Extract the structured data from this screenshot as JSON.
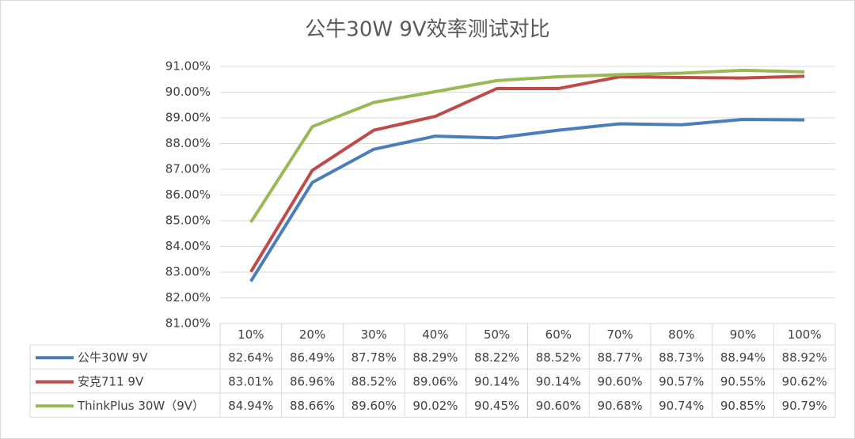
{
  "chart_data": {
    "type": "line",
    "title": "公牛30W 9V效率测试对比",
    "categories": [
      "10%",
      "20%",
      "30%",
      "40%",
      "50%",
      "60%",
      "70%",
      "80%",
      "90%",
      "100%"
    ],
    "series": [
      {
        "name": "公牛30W 9V",
        "color": "#4a7ebb",
        "values": [
          82.64,
          86.49,
          87.78,
          88.29,
          88.22,
          88.52,
          88.77,
          88.73,
          88.94,
          88.92
        ],
        "value_labels": [
          "82.64%",
          "86.49%",
          "87.78%",
          "88.29%",
          "88.22%",
          "88.52%",
          "88.77%",
          "88.73%",
          "88.94%",
          "88.92%"
        ]
      },
      {
        "name": "安克711 9V",
        "color": "#be4b48",
        "values": [
          83.01,
          86.96,
          88.52,
          89.06,
          90.14,
          90.14,
          90.6,
          90.57,
          90.55,
          90.62
        ],
        "value_labels": [
          "83.01%",
          "86.96%",
          "88.52%",
          "89.06%",
          "90.14%",
          "90.14%",
          "90.60%",
          "90.57%",
          "90.55%",
          "90.62%"
        ]
      },
      {
        "name": "ThinkPlus 30W（9V）",
        "color": "#98b954",
        "values": [
          84.94,
          88.66,
          89.6,
          90.02,
          90.45,
          90.6,
          90.68,
          90.74,
          90.85,
          90.79
        ],
        "value_labels": [
          "84.94%",
          "88.66%",
          "89.60%",
          "90.02%",
          "90.45%",
          "90.60%",
          "90.68%",
          "90.74%",
          "90.85%",
          "90.79%"
        ]
      }
    ],
    "ylim": [
      81,
      91
    ],
    "yticks": [
      {
        "value": 81,
        "label": "81.00%"
      },
      {
        "value": 82,
        "label": "82.00%"
      },
      {
        "value": 83,
        "label": "83.00%"
      },
      {
        "value": 84,
        "label": "84.00%"
      },
      {
        "value": 85,
        "label": "85.00%"
      },
      {
        "value": 86,
        "label": "86.00%"
      },
      {
        "value": 87,
        "label": "87.00%"
      },
      {
        "value": 88,
        "label": "88.00%"
      },
      {
        "value": 89,
        "label": "89.00%"
      },
      {
        "value": 90,
        "label": "90.00%"
      },
      {
        "value": 91,
        "label": "91.00%"
      }
    ],
    "grid": true
  }
}
